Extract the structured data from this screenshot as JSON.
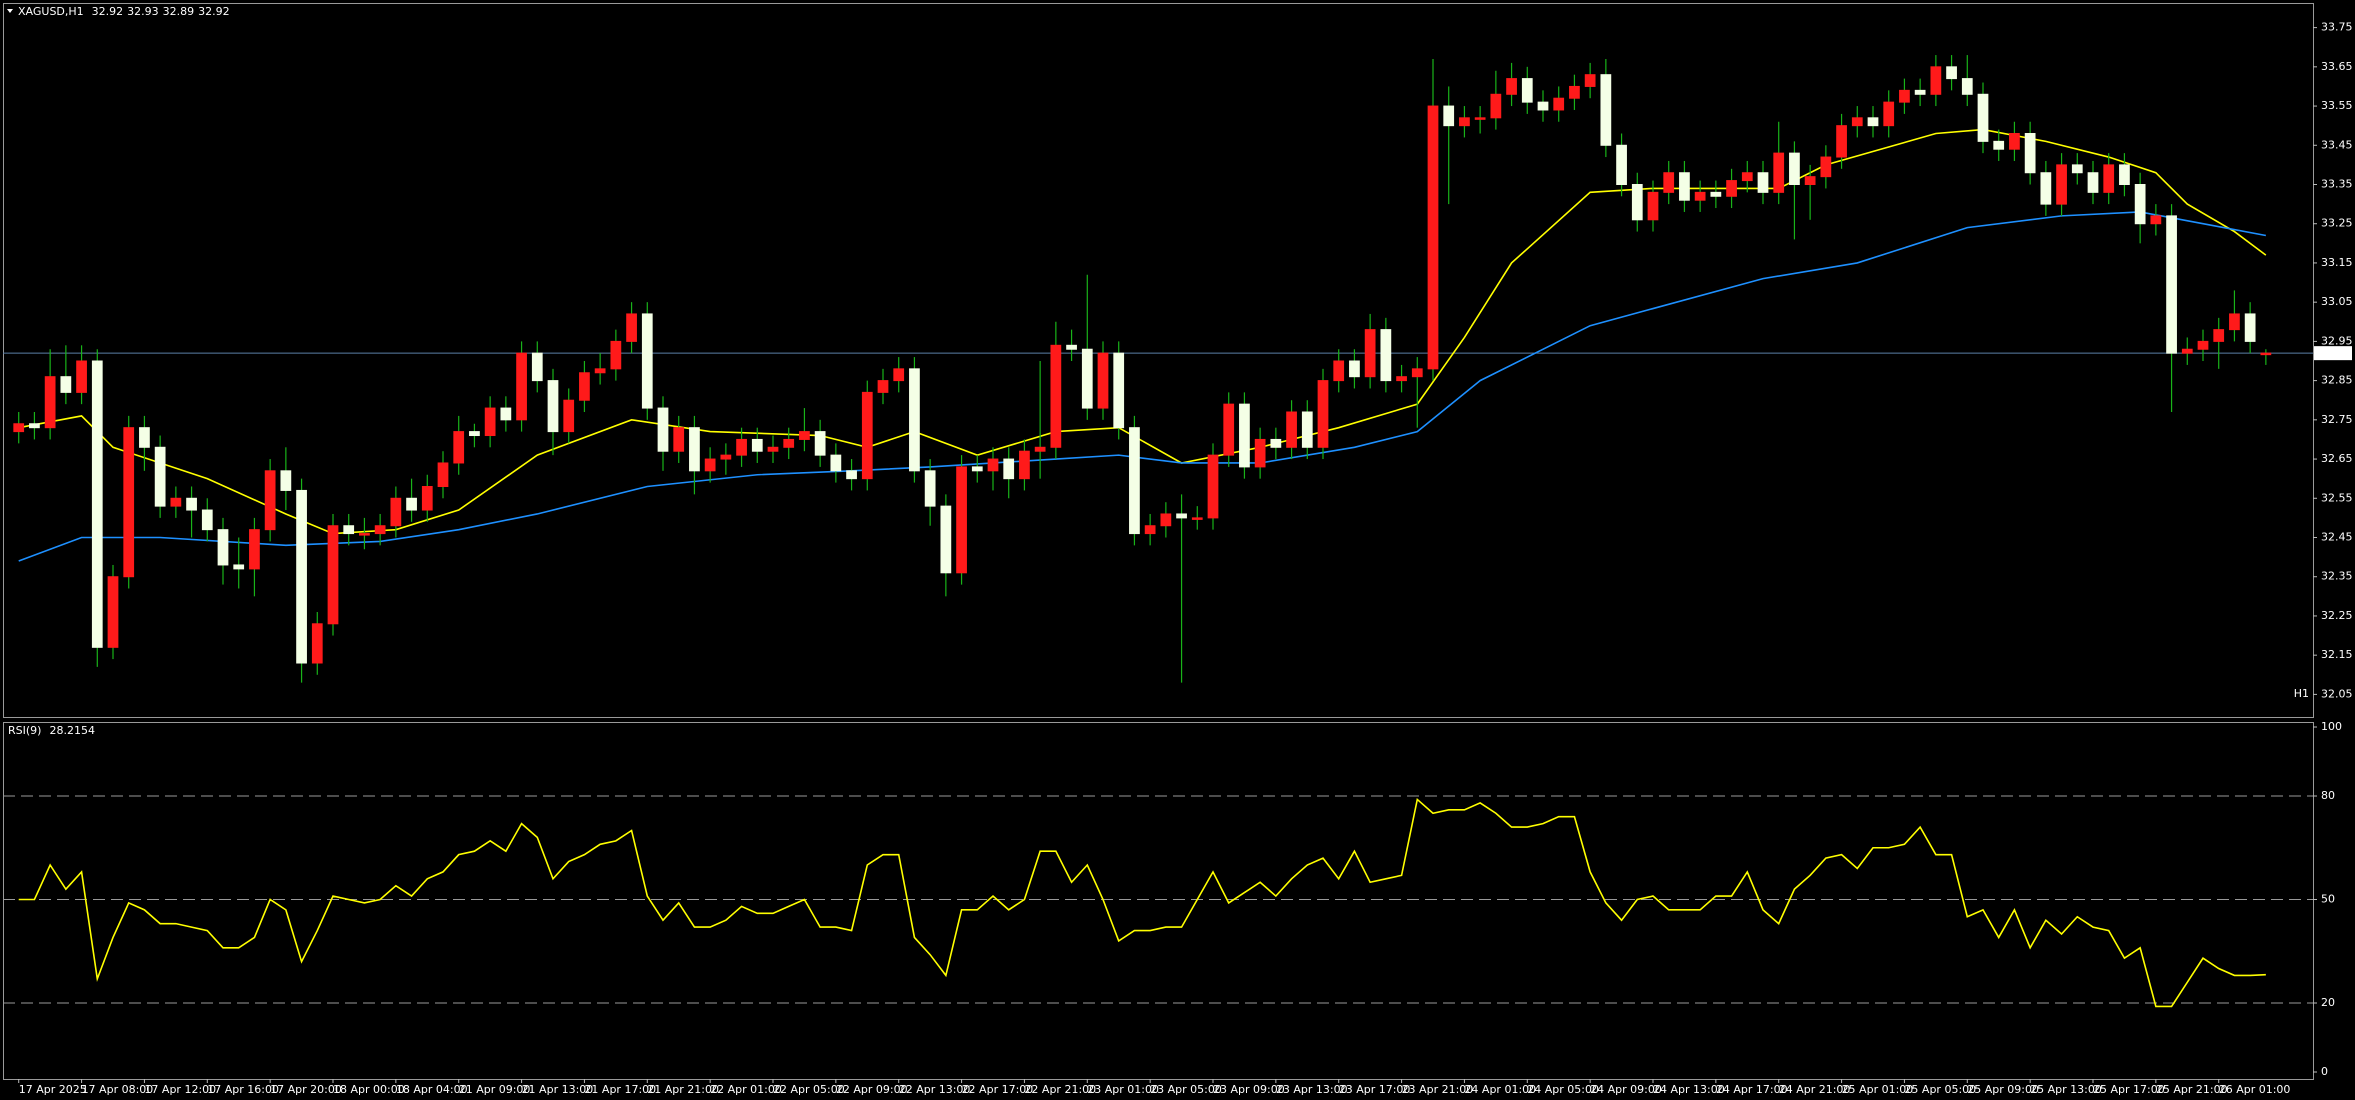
{
  "chart_data": [
    {
      "type": "candlestick",
      "title": "XAGUSD,H1",
      "timeframe": "H1",
      "up_color": "#ff1a1a",
      "down_color": "#f4ffe6",
      "wick_color": "#19b319",
      "timeframe_color": "#e01010",
      "price_line_color": "#5b7fa8",
      "xlim": [
        -1,
        146
      ],
      "ylim": [
        32.0,
        33.8
      ],
      "yticks": [
        33.75,
        33.65,
        33.55,
        33.45,
        33.35,
        33.25,
        33.15,
        33.05,
        32.95,
        32.85,
        32.75,
        32.65,
        32.55,
        32.45,
        32.35,
        32.25,
        32.15,
        32.05
      ],
      "candles": {
        "open": [
          32.72,
          32.74,
          32.73,
          32.86,
          32.82,
          32.9,
          32.17,
          32.35,
          32.73,
          32.68,
          32.53,
          32.55,
          32.52,
          32.47,
          32.38,
          32.37,
          32.47,
          32.62,
          32.57,
          32.13,
          32.23,
          32.48,
          32.46,
          32.46,
          32.48,
          32.55,
          32.52,
          32.58,
          32.64,
          32.72,
          32.71,
          32.78,
          32.75,
          32.92,
          32.85,
          32.72,
          32.8,
          32.87,
          32.88,
          32.95,
          33.02,
          32.78,
          32.67,
          32.73,
          32.62,
          32.65,
          32.66,
          32.7,
          32.67,
          32.68,
          32.7,
          32.72,
          32.66,
          32.62,
          32.6,
          32.82,
          32.85,
          32.88,
          32.62,
          32.53,
          32.36,
          32.63,
          32.62,
          32.65,
          32.6,
          32.67,
          32.68,
          32.94,
          32.93,
          32.78,
          32.92,
          32.73,
          32.46,
          32.48,
          32.51,
          32.5,
          32.5,
          32.66,
          32.79,
          32.63,
          32.7,
          32.68,
          32.77,
          32.68,
          32.85,
          32.9,
          32.86,
          32.98,
          32.85,
          32.86,
          32.88,
          33.55,
          33.5,
          33.52,
          33.52,
          33.58,
          33.62,
          33.56,
          33.54,
          33.57,
          33.6,
          33.63,
          33.45,
          33.35,
          33.26,
          33.33,
          33.38,
          33.31,
          33.33,
          33.32,
          33.36,
          33.38,
          33.33,
          33.43,
          33.35,
          33.37,
          33.42,
          33.5,
          33.52,
          33.5,
          33.56,
          33.59,
          33.58,
          33.65,
          33.62,
          33.58,
          33.46,
          33.44,
          33.48,
          33.38,
          33.3,
          33.4,
          33.38,
          33.33,
          33.4,
          33.35,
          33.25,
          33.27,
          32.92,
          32.93,
          32.95,
          32.98,
          33.02,
          32.92
        ],
        "high": [
          32.77,
          32.77,
          32.93,
          32.94,
          32.94,
          32.93,
          32.38,
          32.76,
          32.76,
          32.71,
          32.58,
          32.58,
          32.55,
          32.5,
          32.45,
          32.5,
          32.65,
          32.68,
          32.6,
          32.26,
          32.51,
          32.51,
          32.5,
          32.51,
          32.58,
          32.6,
          32.61,
          32.67,
          32.76,
          32.74,
          32.81,
          32.81,
          32.95,
          32.95,
          32.88,
          32.83,
          32.9,
          32.92,
          32.98,
          33.05,
          33.05,
          32.81,
          32.76,
          32.76,
          32.68,
          32.69,
          32.73,
          32.73,
          32.71,
          32.73,
          32.78,
          32.75,
          32.69,
          32.65,
          32.85,
          32.88,
          32.91,
          32.91,
          32.65,
          32.56,
          32.66,
          32.66,
          32.68,
          32.68,
          32.7,
          32.9,
          33.0,
          32.98,
          33.12,
          32.95,
          32.95,
          32.76,
          32.51,
          32.54,
          32.56,
          32.53,
          32.69,
          32.82,
          32.82,
          32.73,
          32.73,
          32.8,
          32.8,
          32.88,
          32.93,
          32.93,
          33.02,
          33.01,
          32.89,
          32.91,
          33.67,
          33.6,
          33.55,
          33.55,
          33.64,
          33.66,
          33.65,
          33.59,
          33.6,
          33.63,
          33.66,
          33.67,
          33.48,
          33.38,
          33.36,
          33.41,
          33.41,
          33.36,
          33.36,
          33.39,
          33.41,
          33.41,
          33.51,
          33.46,
          33.4,
          33.45,
          33.53,
          33.55,
          33.55,
          33.59,
          33.62,
          33.62,
          33.68,
          33.68,
          33.68,
          33.61,
          33.49,
          33.51,
          33.51,
          33.41,
          33.43,
          33.43,
          33.41,
          33.43,
          33.43,
          33.38,
          33.3,
          33.3,
          32.96,
          32.98,
          33.01,
          33.08,
          33.05,
          32.93
        ],
        "low": [
          32.69,
          32.7,
          32.7,
          32.79,
          32.79,
          32.12,
          32.14,
          32.32,
          32.62,
          32.5,
          32.5,
          32.45,
          32.44,
          32.33,
          32.32,
          32.3,
          32.44,
          32.52,
          32.08,
          32.1,
          32.2,
          32.43,
          32.42,
          32.43,
          32.45,
          32.49,
          32.49,
          32.55,
          32.61,
          32.68,
          32.68,
          32.72,
          32.72,
          32.82,
          32.66,
          32.69,
          32.77,
          32.84,
          32.85,
          32.92,
          32.75,
          32.62,
          32.64,
          32.56,
          32.59,
          32.61,
          32.63,
          32.64,
          32.64,
          32.65,
          32.67,
          32.63,
          32.59,
          32.57,
          32.57,
          32.79,
          32.82,
          32.59,
          32.48,
          32.3,
          32.33,
          32.59,
          32.57,
          32.55,
          32.57,
          32.6,
          32.65,
          32.9,
          32.75,
          32.75,
          32.7,
          32.43,
          32.43,
          32.45,
          32.08,
          32.47,
          32.47,
          32.63,
          32.6,
          32.6,
          32.65,
          32.65,
          32.65,
          32.65,
          32.82,
          32.83,
          32.83,
          32.82,
          32.82,
          32.73,
          32.85,
          33.3,
          33.47,
          33.48,
          33.49,
          33.55,
          33.53,
          33.51,
          33.51,
          33.54,
          33.57,
          33.42,
          33.32,
          33.23,
          33.23,
          33.3,
          33.28,
          33.28,
          33.29,
          33.29,
          33.33,
          33.3,
          33.3,
          33.21,
          33.26,
          33.34,
          33.39,
          33.47,
          33.47,
          33.47,
          33.53,
          33.55,
          33.55,
          33.59,
          33.55,
          33.43,
          33.41,
          33.41,
          33.35,
          33.27,
          33.27,
          33.35,
          33.3,
          33.3,
          33.32,
          33.2,
          33.22,
          32.77,
          32.89,
          32.9,
          32.88,
          32.95,
          32.92,
          32.89
        ],
        "close": [
          32.74,
          32.73,
          32.86,
          32.82,
          32.9,
          32.17,
          32.35,
          32.73,
          32.68,
          32.53,
          32.55,
          32.52,
          32.47,
          32.38,
          32.37,
          32.47,
          32.62,
          32.57,
          32.13,
          32.23,
          32.48,
          32.46,
          32.46,
          32.48,
          32.55,
          32.52,
          32.58,
          32.64,
          32.72,
          32.71,
          32.78,
          32.75,
          32.92,
          32.85,
          32.72,
          32.8,
          32.87,
          32.88,
          32.95,
          33.02,
          32.78,
          32.67,
          32.73,
          32.62,
          32.65,
          32.66,
          32.7,
          32.67,
          32.68,
          32.7,
          32.72,
          32.66,
          32.62,
          32.6,
          32.82,
          32.85,
          32.88,
          32.62,
          32.53,
          32.36,
          32.63,
          32.62,
          32.65,
          32.6,
          32.67,
          32.68,
          32.94,
          32.93,
          32.78,
          32.92,
          32.73,
          32.46,
          32.48,
          32.51,
          32.5,
          32.5,
          32.66,
          32.79,
          32.63,
          32.7,
          32.68,
          32.77,
          32.68,
          32.85,
          32.9,
          32.86,
          32.98,
          32.85,
          32.86,
          32.88,
          33.55,
          33.5,
          33.52,
          33.52,
          33.58,
          33.62,
          33.56,
          33.54,
          33.57,
          33.6,
          33.63,
          33.45,
          33.35,
          33.26,
          33.33,
          33.38,
          33.31,
          33.33,
          33.32,
          33.36,
          33.38,
          33.33,
          33.43,
          33.35,
          33.37,
          33.42,
          33.5,
          33.52,
          33.5,
          33.56,
          33.59,
          33.58,
          33.65,
          33.62,
          33.58,
          33.46,
          33.44,
          33.48,
          33.38,
          33.3,
          33.4,
          33.38,
          33.33,
          33.4,
          33.35,
          33.25,
          33.27,
          32.92,
          32.93,
          32.95,
          32.98,
          33.02,
          32.95,
          32.92
        ]
      },
      "lines": [
        {
          "color": "#ffff00",
          "x": [
            0,
            4,
            6,
            12,
            17,
            20,
            24,
            28,
            33,
            39,
            44,
            51,
            54,
            57,
            61,
            66,
            70,
            74,
            79,
            84,
            89,
            92,
            95,
            100,
            104,
            112,
            115,
            122,
            125,
            129,
            133,
            136,
            138,
            141,
            143
          ],
          "values": [
            32.73,
            32.76,
            32.68,
            32.6,
            32.51,
            32.46,
            32.47,
            32.52,
            32.66,
            32.75,
            32.72,
            32.71,
            32.68,
            32.72,
            32.66,
            32.72,
            32.73,
            32.64,
            32.68,
            32.73,
            32.79,
            32.96,
            33.15,
            33.33,
            33.34,
            33.34,
            33.4,
            33.48,
            33.49,
            33.46,
            33.42,
            33.38,
            33.3,
            33.23,
            33.17
          ]
        },
        {
          "color": "#1e90ff",
          "x": [
            0,
            4,
            9,
            17,
            23,
            28,
            33,
            40,
            47,
            53,
            58,
            66,
            70,
            74,
            79,
            85,
            89,
            93,
            100,
            111,
            117,
            124,
            130,
            135,
            139,
            143
          ],
          "values": [
            32.39,
            32.45,
            32.45,
            32.43,
            32.44,
            32.47,
            32.51,
            32.58,
            32.61,
            32.62,
            32.63,
            32.65,
            32.66,
            32.64,
            32.64,
            32.68,
            32.72,
            32.85,
            32.99,
            33.11,
            33.15,
            33.24,
            33.27,
            33.28,
            33.25,
            33.22
          ]
        }
      ]
    },
    {
      "type": "line",
      "title": "RSI(9)",
      "color": "#ffff00",
      "grid": "dashed",
      "xlim": [
        -1,
        146
      ],
      "ylim": [
        0,
        100
      ],
      "yticks": [
        100,
        80,
        50,
        20,
        0
      ],
      "values": [
        50,
        50,
        60,
        53,
        58,
        27,
        39,
        49,
        47,
        43,
        43,
        42,
        41,
        36,
        36,
        39,
        50,
        47,
        32,
        41,
        51,
        50,
        49,
        50,
        54,
        51,
        56,
        58,
        63,
        64,
        67,
        64,
        72,
        68,
        56,
        61,
        63,
        66,
        67,
        70,
        51,
        44,
        49,
        42,
        42,
        44,
        48,
        46,
        46,
        48,
        50,
        42,
        42,
        41,
        60,
        63,
        63,
        39,
        34,
        28,
        47,
        47,
        51,
        47,
        50,
        64,
        64,
        55,
        60,
        50,
        38,
        41,
        41,
        42,
        42,
        50,
        58,
        49,
        52,
        55,
        51,
        56,
        60,
        62,
        56,
        64,
        55,
        56,
        57,
        79,
        75,
        76,
        76,
        78,
        75,
        71,
        71,
        72,
        74,
        74,
        58,
        49,
        44,
        50,
        51,
        47,
        47,
        47,
        51,
        51,
        58,
        47,
        43,
        53,
        57,
        62,
        63,
        59,
        65,
        65,
        66,
        71,
        63,
        63,
        45,
        47,
        39,
        47,
        36,
        44,
        40,
        45,
        42,
        41,
        33,
        36,
        19,
        19,
        26,
        33,
        30,
        28,
        28,
        28.2154
      ],
      "xticks": [
        {
          "value": 0,
          "label": "17 Apr 2025"
        },
        {
          "value": 4,
          "label": "17 Apr 08:00"
        },
        {
          "value": 8,
          "label": "17 Apr 12:00"
        },
        {
          "value": 12,
          "label": "17 Apr 16:00"
        },
        {
          "value": 16,
          "label": "17 Apr 20:00"
        },
        {
          "value": 20,
          "label": "18 Apr 00:00"
        },
        {
          "value": 24,
          "label": "18 Apr 04:00"
        },
        {
          "value": 28,
          "label": "21 Apr 09:00"
        },
        {
          "value": 32,
          "label": "21 Apr 13:00"
        },
        {
          "value": 36,
          "label": "21 Apr 17:00"
        },
        {
          "value": 40,
          "label": "21 Apr 21:00"
        },
        {
          "value": 44,
          "label": "22 Apr 01:00"
        },
        {
          "value": 48,
          "label": "22 Apr 05:00"
        },
        {
          "value": 52,
          "label": "22 Apr 09:00"
        },
        {
          "value": 56,
          "label": "22 Apr 13:00"
        },
        {
          "value": 60,
          "label": "22 Apr 17:00"
        },
        {
          "value": 64,
          "label": "22 Apr 21:00"
        },
        {
          "value": 68,
          "label": "23 Apr 01:00"
        },
        {
          "value": 72,
          "label": "23 Apr 05:00"
        },
        {
          "value": 76,
          "label": "23 Apr 09:00"
        },
        {
          "value": 80,
          "label": "23 Apr 13:00"
        },
        {
          "value": 84,
          "label": "23 Apr 17:00"
        },
        {
          "value": 88,
          "label": "23 Apr 21:00"
        },
        {
          "value": 92,
          "label": "24 Apr 01:00"
        },
        {
          "value": 96,
          "label": "24 Apr 05:00"
        },
        {
          "value": 100,
          "label": "24 Apr 09:00"
        },
        {
          "value": 104,
          "label": "24 Apr 13:00"
        },
        {
          "value": 108,
          "label": "24 Apr 17:00"
        },
        {
          "value": 112,
          "label": "24 Apr 21:00"
        },
        {
          "value": 116,
          "label": "25 Apr 01:00"
        },
        {
          "value": 120,
          "label": "25 Apr 05:00"
        },
        {
          "value": 124,
          "label": "25 Apr 09:00"
        },
        {
          "value": 128,
          "label": "25 Apr 13:00"
        },
        {
          "value": 132,
          "label": "25 Apr 17:00"
        },
        {
          "value": 136,
          "label": "25 Apr 21:00"
        },
        {
          "value": 140,
          "label": "26 Apr 01:00"
        }
      ]
    }
  ]
}
